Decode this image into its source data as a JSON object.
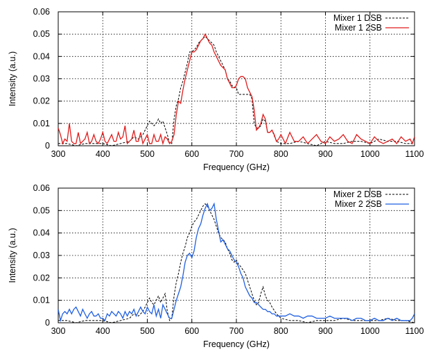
{
  "chart_data": [
    {
      "type": "line",
      "title": "",
      "xlabel": "Frequency (GHz)",
      "ylabel": "Intensity (a.u.)",
      "xlim": [
        300,
        1100
      ],
      "ylim": [
        0,
        0.06
      ],
      "xticks": [
        300,
        400,
        500,
        600,
        700,
        800,
        900,
        1000,
        1100
      ],
      "yticks": [
        0,
        0.01,
        0.02,
        0.03,
        0.04,
        0.05,
        0.06
      ],
      "xtick_labels": [
        "300",
        "400",
        "500",
        "600",
        "700",
        "800",
        "900",
        "1000",
        "1100"
      ],
      "ytick_labels": [
        "0",
        "0.01",
        "0.02",
        "0.03",
        "0.04",
        "0.05",
        "0.06"
      ],
      "grid": true,
      "legend_position": "top-right",
      "series": [
        {
          "name": "Mixer 1 DSB",
          "color": "#000000",
          "style": "dashed",
          "x": [
            300,
            320,
            340,
            360,
            380,
            400,
            420,
            440,
            460,
            470,
            480,
            490,
            500,
            505,
            510,
            515,
            520,
            525,
            530,
            535,
            540,
            545,
            550,
            555,
            560,
            565,
            570,
            575,
            580,
            585,
            590,
            595,
            600,
            605,
            610,
            615,
            620,
            625,
            630,
            635,
            640,
            645,
            650,
            655,
            660,
            665,
            670,
            675,
            680,
            685,
            690,
            695,
            700,
            705,
            710,
            720,
            730,
            735,
            740,
            745,
            750,
            755,
            760,
            765,
            770,
            775,
            780,
            790,
            800,
            820,
            840,
            860,
            880,
            900,
            920,
            940,
            960,
            980,
            1000,
            1020,
            1040,
            1060,
            1080,
            1100
          ],
          "y": [
            0.001,
            0.001,
            0.0,
            0.001,
            0.001,
            0.001,
            0.0,
            0.001,
            0.002,
            0.004,
            0.003,
            0.005,
            0.009,
            0.011,
            0.01,
            0.009,
            0.01,
            0.012,
            0.01,
            0.011,
            0.008,
            0.005,
            0.001,
            0.001,
            0.012,
            0.018,
            0.021,
            0.026,
            0.029,
            0.033,
            0.037,
            0.042,
            0.042,
            0.043,
            0.044,
            0.046,
            0.047,
            0.048,
            0.049,
            0.048,
            0.047,
            0.046,
            0.045,
            0.042,
            0.04,
            0.038,
            0.036,
            0.034,
            0.03,
            0.029,
            0.027,
            0.026,
            0.026,
            0.023,
            0.023,
            0.023,
            0.023,
            0.021,
            0.01,
            0.008,
            0.008,
            0.009,
            0.012,
            0.011,
            0.006,
            0.006,
            0.007,
            0.002,
            0.001,
            0.001,
            0.002,
            0.001,
            0.0,
            0.002,
            0.001,
            0.001,
            0.002,
            0.002,
            0.001,
            0.003,
            0.002,
            0.002,
            0.001,
            0.001
          ]
        },
        {
          "name": "Mixer 1 2SB",
          "color": "#e01b1b",
          "style": "solid",
          "x": [
            300,
            305,
            310,
            315,
            320,
            325,
            330,
            335,
            340,
            345,
            350,
            355,
            360,
            365,
            370,
            375,
            380,
            385,
            390,
            395,
            400,
            405,
            410,
            415,
            420,
            425,
            430,
            435,
            440,
            445,
            450,
            455,
            460,
            465,
            470,
            475,
            480,
            485,
            490,
            495,
            500,
            505,
            510,
            515,
            520,
            525,
            530,
            535,
            540,
            545,
            550,
            555,
            560,
            565,
            570,
            575,
            580,
            585,
            590,
            595,
            600,
            605,
            610,
            615,
            620,
            625,
            630,
            635,
            640,
            645,
            650,
            655,
            660,
            665,
            670,
            675,
            680,
            685,
            690,
            695,
            700,
            705,
            710,
            715,
            720,
            725,
            730,
            735,
            740,
            745,
            750,
            755,
            760,
            765,
            770,
            775,
            780,
            785,
            790,
            795,
            800,
            810,
            820,
            830,
            840,
            850,
            860,
            870,
            880,
            890,
            900,
            910,
            920,
            930,
            940,
            950,
            960,
            970,
            980,
            990,
            1000,
            1010,
            1020,
            1030,
            1040,
            1050,
            1060,
            1070,
            1080,
            1090,
            1095,
            1100
          ],
          "y": [
            0.008,
            0.005,
            0.001,
            0.003,
            0.002,
            0.01,
            0.002,
            0.001,
            0.001,
            0.006,
            0.001,
            0.002,
            0.003,
            0.006,
            0.001,
            0.002,
            0.005,
            0.002,
            0.001,
            0.003,
            0.006,
            0.002,
            0.001,
            0.003,
            0.005,
            0.002,
            0.002,
            0.006,
            0.003,
            0.004,
            0.009,
            0.001,
            0.002,
            0.003,
            0.007,
            0.002,
            0.002,
            0.006,
            0.001,
            0.003,
            0.005,
            0.001,
            0.001,
            0.005,
            0.002,
            0.002,
            0.005,
            0.001,
            0.004,
            0.003,
            0.001,
            0.002,
            0.005,
            0.014,
            0.02,
            0.019,
            0.025,
            0.03,
            0.034,
            0.038,
            0.042,
            0.042,
            0.043,
            0.045,
            0.047,
            0.048,
            0.05,
            0.048,
            0.046,
            0.045,
            0.042,
            0.04,
            0.038,
            0.036,
            0.035,
            0.034,
            0.03,
            0.028,
            0.026,
            0.026,
            0.027,
            0.03,
            0.031,
            0.031,
            0.03,
            0.026,
            0.024,
            0.022,
            0.016,
            0.007,
            0.008,
            0.01,
            0.014,
            0.012,
            0.006,
            0.006,
            0.007,
            0.005,
            0.002,
            0.003,
            0.005,
            0.001,
            0.006,
            0.002,
            0.002,
            0.004,
            0.001,
            0.003,
            0.005,
            0.002,
            0.001,
            0.004,
            0.002,
            0.003,
            0.005,
            0.002,
            0.001,
            0.005,
            0.003,
            0.002,
            0.001,
            0.004,
            0.002,
            0.001,
            0.002,
            0.003,
            0.001,
            0.004,
            0.002,
            0.003,
            0.001,
            0.004
          ]
        }
      ]
    },
    {
      "type": "line",
      "title": "",
      "xlabel": "Frequency (GHz)",
      "ylabel": "Intensity (a.u.)",
      "xlim": [
        300,
        1100
      ],
      "ylim": [
        0,
        0.06
      ],
      "xticks": [
        300,
        400,
        500,
        600,
        700,
        800,
        900,
        1000,
        1100
      ],
      "yticks": [
        0,
        0.01,
        0.02,
        0.03,
        0.04,
        0.05,
        0.06
      ],
      "xtick_labels": [
        "300",
        "400",
        "500",
        "600",
        "700",
        "800",
        "900",
        "1000",
        "1100"
      ],
      "ytick_labels": [
        "0",
        "0.01",
        "0.02",
        "0.03",
        "0.04",
        "0.05",
        "0.06"
      ],
      "grid": true,
      "legend_position": "top-right",
      "series": [
        {
          "name": "Mixer 2 DSB",
          "color": "#000000",
          "style": "dashed",
          "x": [
            300,
            320,
            340,
            360,
            380,
            400,
            420,
            440,
            460,
            470,
            480,
            490,
            500,
            505,
            510,
            515,
            520,
            525,
            530,
            535,
            540,
            545,
            550,
            555,
            560,
            565,
            570,
            575,
            580,
            585,
            590,
            595,
            600,
            605,
            610,
            615,
            620,
            625,
            630,
            635,
            640,
            645,
            650,
            655,
            660,
            665,
            670,
            675,
            680,
            685,
            690,
            695,
            700,
            705,
            710,
            720,
            730,
            735,
            740,
            745,
            750,
            755,
            760,
            765,
            770,
            775,
            780,
            790,
            800,
            820,
            840,
            860,
            880,
            900,
            920,
            940,
            960,
            980,
            1000,
            1020,
            1040,
            1060,
            1080,
            1100
          ],
          "y": [
            0.001,
            0.001,
            0.0,
            0.001,
            0.001,
            0.001,
            0.0,
            0.001,
            0.002,
            0.004,
            0.003,
            0.005,
            0.009,
            0.011,
            0.009,
            0.008,
            0.01,
            0.012,
            0.009,
            0.011,
            0.013,
            0.005,
            0.001,
            0.002,
            0.012,
            0.018,
            0.022,
            0.027,
            0.031,
            0.034,
            0.038,
            0.04,
            0.043,
            0.045,
            0.046,
            0.048,
            0.05,
            0.052,
            0.053,
            0.052,
            0.05,
            0.048,
            0.046,
            0.043,
            0.04,
            0.038,
            0.037,
            0.036,
            0.033,
            0.031,
            0.028,
            0.027,
            0.028,
            0.026,
            0.025,
            0.022,
            0.016,
            0.013,
            0.01,
            0.008,
            0.009,
            0.013,
            0.016,
            0.012,
            0.01,
            0.009,
            0.007,
            0.004,
            0.002,
            0.001,
            0.001,
            0.0,
            0.001,
            0.001,
            0.001,
            0.002,
            0.001,
            0.001,
            0.001,
            0.001,
            0.002,
            0.001,
            0.001,
            0.0
          ]
        },
        {
          "name": "Mixer 2 2SB",
          "color": "#1f5fe0",
          "style": "solid",
          "x": [
            300,
            305,
            310,
            315,
            320,
            325,
            330,
            335,
            340,
            345,
            350,
            355,
            360,
            365,
            370,
            375,
            380,
            385,
            390,
            395,
            400,
            405,
            410,
            415,
            420,
            425,
            430,
            435,
            440,
            445,
            450,
            455,
            460,
            465,
            470,
            475,
            480,
            485,
            490,
            495,
            500,
            505,
            510,
            515,
            520,
            525,
            530,
            535,
            540,
            545,
            550,
            555,
            560,
            565,
            570,
            575,
            580,
            585,
            590,
            595,
            600,
            605,
            610,
            615,
            620,
            625,
            630,
            635,
            640,
            645,
            650,
            655,
            660,
            665,
            670,
            675,
            680,
            685,
            690,
            695,
            700,
            705,
            710,
            715,
            720,
            725,
            730,
            735,
            740,
            745,
            750,
            755,
            760,
            765,
            770,
            775,
            780,
            785,
            790,
            795,
            800,
            810,
            820,
            830,
            840,
            850,
            860,
            870,
            880,
            890,
            900,
            910,
            920,
            930,
            940,
            950,
            960,
            970,
            980,
            990,
            1000,
            1010,
            1020,
            1030,
            1040,
            1050,
            1060,
            1070,
            1080,
            1090,
            1095,
            1100
          ],
          "y": [
            0.006,
            0.001,
            0.004,
            0.005,
            0.004,
            0.006,
            0.004,
            0.006,
            0.007,
            0.005,
            0.003,
            0.006,
            0.004,
            0.002,
            0.004,
            0.005,
            0.003,
            0.003,
            0.004,
            0.002,
            0.002,
            0.001,
            0.004,
            0.003,
            0.005,
            0.004,
            0.003,
            0.005,
            0.004,
            0.002,
            0.005,
            0.003,
            0.005,
            0.004,
            0.006,
            0.003,
            0.005,
            0.007,
            0.005,
            0.004,
            0.007,
            0.005,
            0.004,
            0.008,
            0.003,
            0.006,
            0.002,
            0.008,
            0.006,
            0.004,
            0.002,
            0.002,
            0.006,
            0.01,
            0.013,
            0.016,
            0.021,
            0.027,
            0.03,
            0.031,
            0.029,
            0.032,
            0.038,
            0.042,
            0.044,
            0.048,
            0.051,
            0.053,
            0.05,
            0.051,
            0.053,
            0.046,
            0.041,
            0.036,
            0.037,
            0.035,
            0.033,
            0.032,
            0.03,
            0.028,
            0.027,
            0.025,
            0.022,
            0.02,
            0.016,
            0.014,
            0.012,
            0.011,
            0.009,
            0.009,
            0.008,
            0.007,
            0.006,
            0.006,
            0.005,
            0.005,
            0.004,
            0.004,
            0.003,
            0.003,
            0.003,
            0.003,
            0.004,
            0.003,
            0.003,
            0.002,
            0.003,
            0.003,
            0.002,
            0.002,
            0.002,
            0.003,
            0.002,
            0.002,
            0.002,
            0.002,
            0.001,
            0.002,
            0.002,
            0.001,
            0.001,
            0.002,
            0.001,
            0.001,
            0.002,
            0.001,
            0.002,
            0.001,
            0.001,
            0.001,
            0.002,
            0.004
          ]
        }
      ]
    }
  ]
}
